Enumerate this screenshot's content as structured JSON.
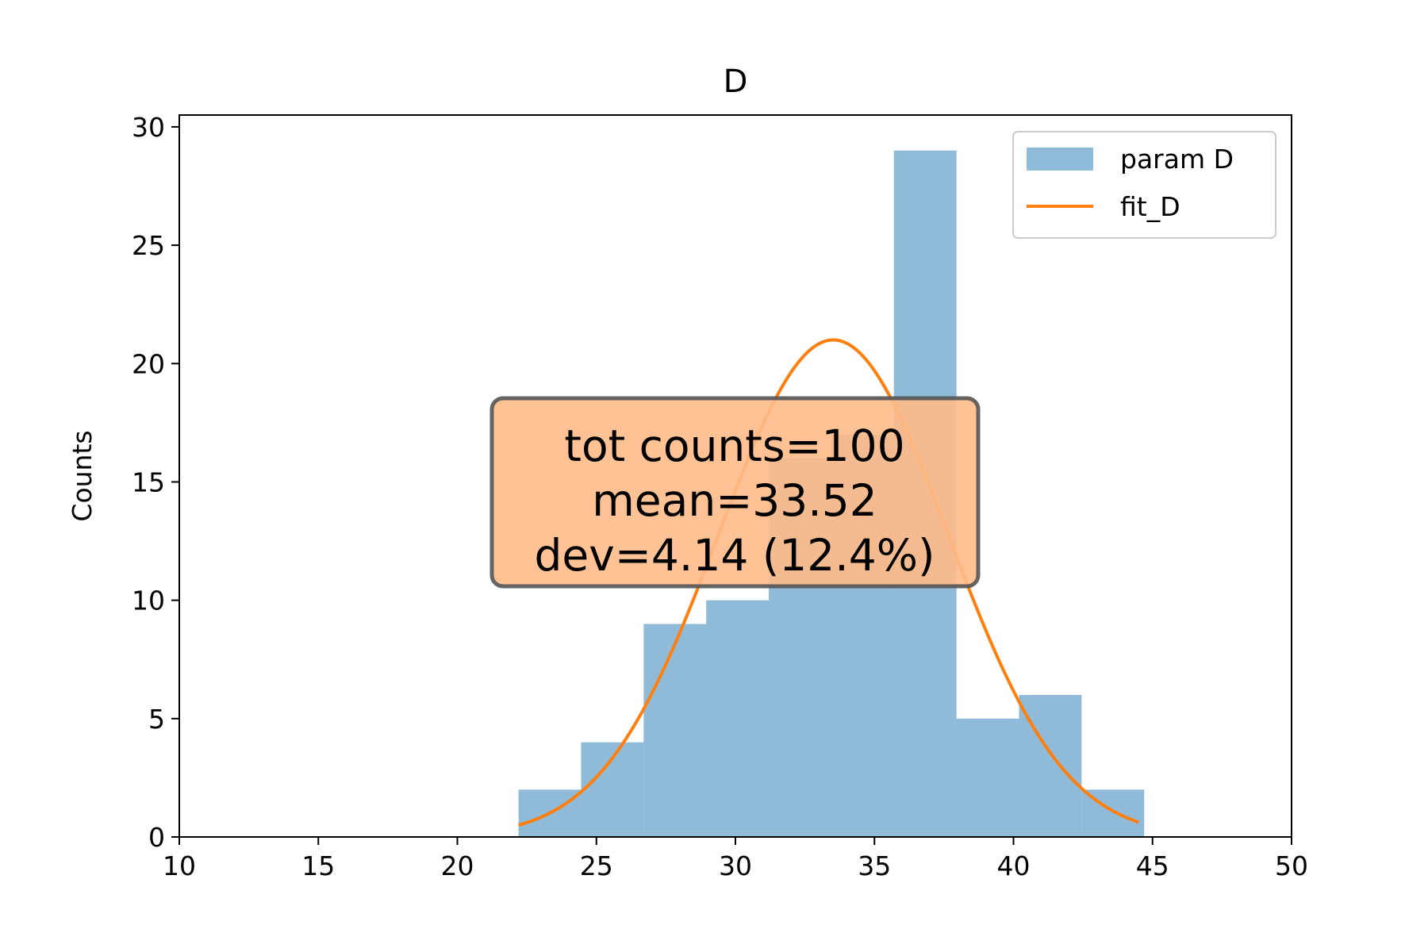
{
  "chart_data": {
    "type": "bar",
    "title": "D",
    "xlabel": "",
    "ylabel": "Counts",
    "xlim": [
      10,
      50
    ],
    "ylim": [
      0,
      30.5
    ],
    "x_ticks": [
      10,
      15,
      20,
      25,
      30,
      35,
      40,
      45,
      50
    ],
    "y_ticks": [
      0,
      5,
      10,
      15,
      20,
      25,
      30
    ],
    "grid": false,
    "legend_position": "top-right",
    "series": [
      {
        "name": "param D",
        "kind": "histogram",
        "color": "#1f77b4",
        "bins": [
          {
            "start": 22.2,
            "end": 24.45,
            "count": 2
          },
          {
            "start": 24.45,
            "end": 26.7,
            "count": 4
          },
          {
            "start": 26.7,
            "end": 28.95,
            "count": 9
          },
          {
            "start": 28.95,
            "end": 31.2,
            "count": 10
          },
          {
            "start": 31.2,
            "end": 33.45,
            "count": 16
          },
          {
            "start": 33.45,
            "end": 35.7,
            "count": 17
          },
          {
            "start": 35.7,
            "end": 37.95,
            "count": 29
          },
          {
            "start": 37.95,
            "end": 40.2,
            "count": 5
          },
          {
            "start": 40.2,
            "end": 42.45,
            "count": 6
          },
          {
            "start": 42.45,
            "end": 44.7,
            "count": 2
          }
        ]
      },
      {
        "name": "fit_D",
        "kind": "gaussian",
        "color": "#ff7f0e",
        "mean": 33.52,
        "sigma": 4.14,
        "amplitude": 21,
        "x_range": [
          22.2,
          44.5
        ]
      }
    ],
    "annotation": {
      "lines": [
        "tot counts=100",
        "mean=33.52",
        "dev=4.14 (12.4%)"
      ],
      "face_color": "#ffbb88",
      "edge_color": "#555555"
    }
  }
}
